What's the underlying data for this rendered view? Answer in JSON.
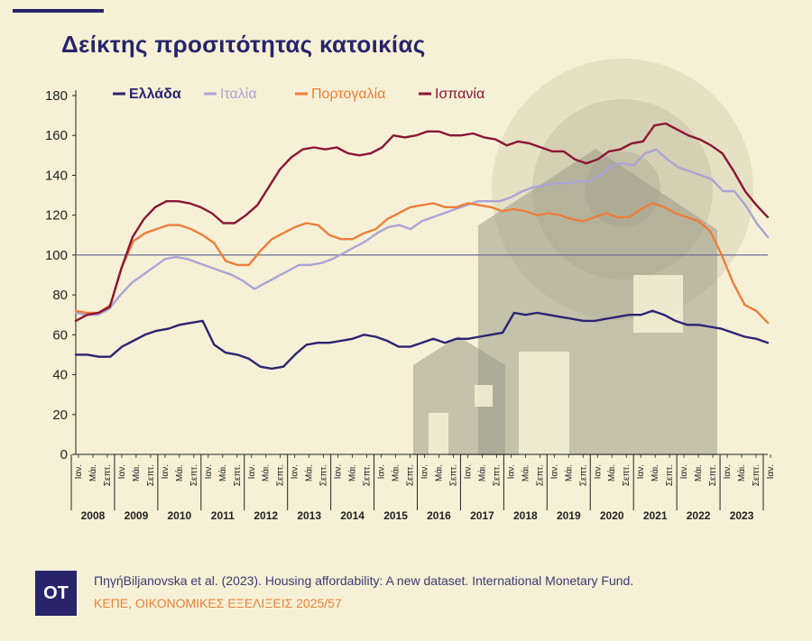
{
  "header": {
    "title": "Δείκτης προσιτότητας κατοικίας"
  },
  "chart_data": {
    "type": "line",
    "ylim": [
      0,
      180
    ],
    "yticks": [
      0,
      20,
      40,
      60,
      80,
      100,
      120,
      140,
      160,
      180
    ],
    "reference_line": 100,
    "legend_placement": "top",
    "quarter_labels": [
      "Ιαν.",
      "Μάι.",
      "Σεπτ.",
      "Ιαν.",
      "Μάι.",
      "Σεπτ.",
      "Ιαν.",
      "Μάι.",
      "Σεπτ.",
      "Ιαν.",
      "Μάι.",
      "Σεπτ.",
      "Ιαν.",
      "Μάι.",
      "Σεπτ.",
      "Ιαν.",
      "Μάι.",
      "Σεπτ.",
      "Ιαν.",
      "Μάι.",
      "Σεπτ.",
      "Ιαν.",
      "Μάι.",
      "Σεπτ.",
      "Ιαν.",
      "Μάι.",
      "Σεπτ.",
      "Ιαν.",
      "Μάι.",
      "Σεπτ.",
      "Ιαν.",
      "Μάι.",
      "Σεπτ.",
      "Ιαν.",
      "Μάι.",
      "Σεπτ.",
      "Ιαν.",
      "Μάι.",
      "Σεπτ.",
      "Ιαν.",
      "Μάι.",
      "Σεπτ.",
      "Ιαν.",
      "Μάι.",
      "Σεπτ.",
      "Ιαν.",
      "Μάι.",
      "Σεπτ.",
      "Ιαν."
    ],
    "year_labels": [
      "2008",
      "2009",
      "2010",
      "2011",
      "2012",
      "2013",
      "2014",
      "2015",
      "2016",
      "2017",
      "2018",
      "2019",
      "2020",
      "2021",
      "2022",
      "2023"
    ],
    "series": [
      {
        "name": "Ελλάδα",
        "color": "#2a2474",
        "values": [
          50,
          50,
          49,
          49,
          54,
          57,
          60,
          62,
          63,
          65,
          66,
          67,
          55,
          51,
          50,
          48,
          44,
          43,
          44,
          50,
          55,
          56,
          56,
          57,
          58,
          60,
          59,
          57,
          54,
          54,
          56,
          58,
          56,
          58,
          58,
          59,
          60,
          61,
          71,
          70,
          71,
          70,
          69,
          68,
          67,
          67,
          68,
          69,
          70,
          70,
          72,
          70,
          67,
          65,
          65,
          64,
          63,
          61,
          59,
          58,
          56
        ]
      },
      {
        "name": "Ιταλία",
        "color": "#aaa4d6",
        "values": [
          71,
          70,
          70,
          73,
          80,
          86,
          90,
          94,
          98,
          99,
          98,
          96,
          94,
          92,
          90,
          87,
          83,
          86,
          89,
          92,
          95,
          95,
          96,
          98,
          101,
          104,
          107,
          111,
          114,
          115,
          113,
          117,
          119,
          121,
          123,
          125,
          127,
          127,
          127,
          129,
          132,
          134,
          135,
          136,
          136,
          137,
          137,
          140,
          145,
          146,
          145,
          151,
          153,
          148,
          144,
          142,
          140,
          138,
          132,
          132,
          125,
          116,
          109
        ]
      },
      {
        "name": "Πορτογαλία",
        "color": "#ee7d3b",
        "values": [
          72,
          71,
          71,
          75,
          94,
          107,
          111,
          113,
          115,
          115,
          113,
          110,
          106,
          97,
          95,
          95,
          102,
          108,
          111,
          114,
          116,
          115,
          110,
          108,
          108,
          111,
          113,
          118,
          121,
          124,
          125,
          126,
          124,
          124,
          126,
          125,
          124,
          122,
          123,
          122,
          120,
          121,
          120,
          118,
          117,
          119,
          121,
          119,
          119,
          123,
          126,
          124,
          121,
          119,
          117,
          112,
          100,
          86,
          75,
          72,
          66
        ]
      },
      {
        "name": "Ισπανία",
        "color": "#8a1535",
        "values": [
          67,
          70,
          71,
          74,
          93,
          109,
          118,
          124,
          127,
          127,
          126,
          124,
          121,
          116,
          116,
          120,
          125,
          134,
          143,
          149,
          153,
          154,
          153,
          154,
          151,
          150,
          151,
          154,
          160,
          159,
          160,
          162,
          162,
          160,
          160,
          161,
          159,
          158,
          155,
          157,
          156,
          154,
          152,
          152,
          148,
          146,
          148,
          152,
          153,
          156,
          157,
          165,
          166,
          163,
          160,
          158,
          155,
          151,
          142,
          132,
          125,
          119
        ]
      }
    ]
  },
  "footer": {
    "logo": "OT",
    "source": "ΠηγήBiljanovska et al. (2023). Housing affordability: A new dataset. International Monetary Fund.",
    "publisher": "ΚΕΠΕ, ΟΙΚΟΝΟΜΙΚΕΣ ΕΞΕΛΙΞΕΙΣ 2025/57"
  }
}
